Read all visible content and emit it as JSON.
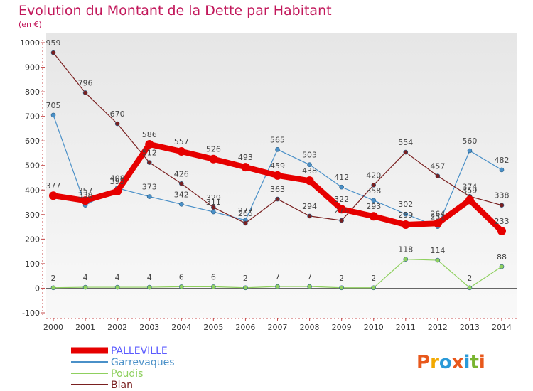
{
  "header": {
    "title": "Evolution du Montant de la Dette par Habitant",
    "subtitle": "(en €)"
  },
  "brand": {
    "text": "Proxiti",
    "colors": [
      "#e8581c",
      "#f2a900",
      "#2a9ad8",
      "#e8581c",
      "#2a9ad8",
      "#79b530",
      "#e8581c"
    ]
  },
  "chart_data": {
    "type": "line",
    "title": "Evolution du Montant de la Dette par Habitant",
    "subtitle": "(en €)",
    "xlabel": "",
    "ylabel": "",
    "x": [
      "2000",
      "2001",
      "2002",
      "2003",
      "2004",
      "2005",
      "2006",
      "2007",
      "2008",
      "2009",
      "2010",
      "2011",
      "2012",
      "2013",
      "2014"
    ],
    "ylim": [
      -100,
      1000
    ],
    "yticks": [
      "-100",
      "0",
      "100",
      "200",
      "300",
      "400",
      "500",
      "600",
      "700",
      "800",
      "900",
      "1000"
    ],
    "grid": false,
    "legend_position": "bottom-left",
    "series": [
      {
        "name": "PALLEVILLE",
        "color": "#e60000",
        "legend_text_color": "#5b5bff",
        "values": [
          377,
          357,
          395,
          586,
          557,
          526,
          493,
          459,
          438,
          322,
          293,
          259,
          264,
          359,
          233
        ],
        "labels": [
          "377",
          "357",
          "395",
          "586",
          "557",
          "526",
          "493",
          "459",
          "438",
          "322",
          "293",
          "259",
          "264",
          "359",
          "233"
        ]
      },
      {
        "name": "Garrevaques",
        "color": "#4a90c8",
        "legend_text_color": "#4a90c8",
        "values": [
          705,
          338,
          408,
          373,
          342,
          311,
          277,
          565,
          503,
          412,
          358,
          302,
          251,
          560,
          482
        ],
        "labels": [
          "705",
          "338",
          "408",
          "373",
          "342",
          "311",
          "277",
          "565",
          "503",
          "412",
          "358",
          "302",
          "251",
          "560",
          "482"
        ]
      },
      {
        "name": "Poudis",
        "color": "#8fd05f",
        "legend_text_color": "#8fd05f",
        "values": [
          2,
          4,
          4,
          4,
          6,
          6,
          2,
          7,
          7,
          2,
          2,
          118,
          114,
          2,
          88
        ],
        "labels": [
          "2",
          "4",
          "4",
          "4",
          "6",
          "6",
          "2",
          "7",
          "7",
          "2",
          "2",
          "118",
          "114",
          "2",
          "88"
        ]
      },
      {
        "name": "Blan",
        "color": "#7a2020",
        "legend_text_color": "#7a2020",
        "values": [
          959,
          796,
          670,
          512,
          426,
          329,
          265,
          363,
          294,
          276,
          420,
          554,
          457,
          374,
          338
        ],
        "labels": [
          "959",
          "796",
          "670",
          "512",
          "426",
          "329",
          "265",
          "363",
          "294",
          "276",
          "420",
          "554",
          "457",
          "374",
          "338"
        ]
      }
    ]
  }
}
